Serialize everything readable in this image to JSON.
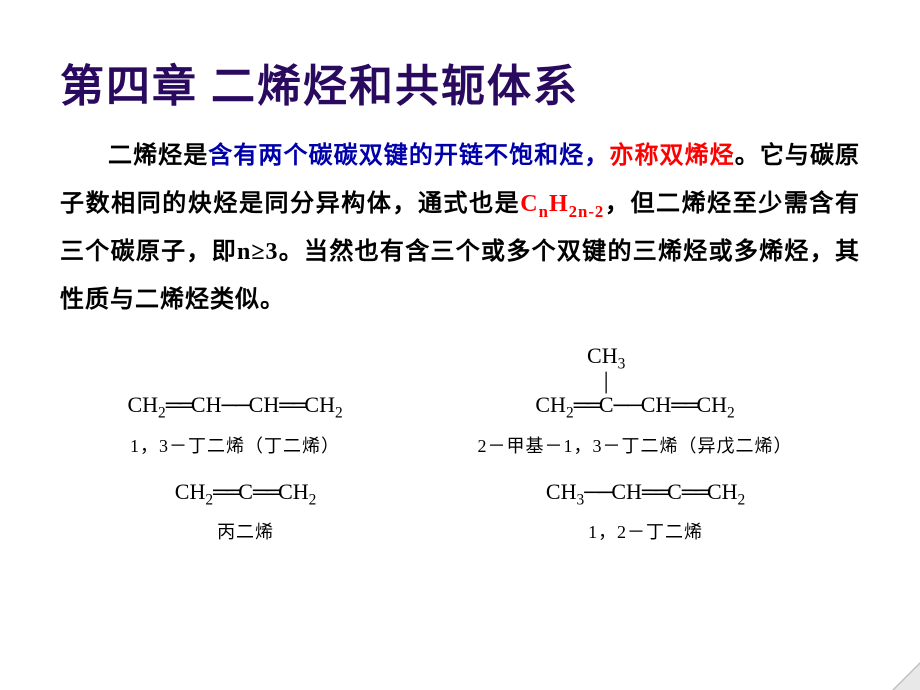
{
  "title": {
    "text": "第四章  二烯烃和共轭体系",
    "color": "#2a0a5e"
  },
  "paragraph": {
    "segments": [
      {
        "text": "二烯烃是",
        "color": "black"
      },
      {
        "text": "含有两个碳碳双键的开链不饱和烃，",
        "color": "blue"
      },
      {
        "text": "亦称双烯烃",
        "color": "red"
      },
      {
        "text": "。它与碳原子数相同的炔烃是同分异构体，通式也是",
        "color": "black"
      },
      {
        "text": "C",
        "color": "red"
      },
      {
        "text": "n",
        "color": "red",
        "sub": true
      },
      {
        "text": "H",
        "color": "red"
      },
      {
        "text": "2n-2",
        "color": "red",
        "sub": true
      },
      {
        "text": "，但二烯烃至少需含有三个碳原子，即n≥3。当然也有含三个或多个双键的三烯烃或多烯烃，其性质与二烯烃类似。",
        "color": "black"
      }
    ]
  },
  "molecules": {
    "row1": [
      {
        "branch": null,
        "formula_parts": [
          {
            "t": "CH",
            "s": ""
          },
          {
            "t": "2",
            "s": "sub"
          },
          {
            "t": "═",
            "s": "bond"
          },
          {
            "t": "CH",
            "s": ""
          },
          {
            "t": "—",
            "s": "sbond"
          },
          {
            "t": "CH",
            "s": ""
          },
          {
            "t": "═",
            "s": "bond"
          },
          {
            "t": "CH",
            "s": ""
          },
          {
            "t": "2",
            "s": "sub"
          }
        ],
        "label": "1，3－丁二烯（丁二烯）"
      },
      {
        "branch": {
          "text": "CH₃",
          "on_index": 4
        },
        "formula_parts": [
          {
            "t": "CH",
            "s": ""
          },
          {
            "t": "2",
            "s": "sub"
          },
          {
            "t": "═",
            "s": "bond"
          },
          {
            "t": "C",
            "s": "",
            "branch": true
          },
          {
            "t": "—",
            "s": "sbond"
          },
          {
            "t": "CH",
            "s": ""
          },
          {
            "t": "═",
            "s": "bond"
          },
          {
            "t": "CH",
            "s": ""
          },
          {
            "t": "2",
            "s": "sub"
          }
        ],
        "label": "2－甲基－1，3－丁二烯（异戊二烯）"
      }
    ],
    "row2": [
      {
        "branch": null,
        "formula_parts": [
          {
            "t": "CH",
            "s": ""
          },
          {
            "t": "2",
            "s": "sub"
          },
          {
            "t": "═",
            "s": "bond"
          },
          {
            "t": "C",
            "s": ""
          },
          {
            "t": "═",
            "s": "bond"
          },
          {
            "t": "CH",
            "s": ""
          },
          {
            "t": "2",
            "s": "sub"
          }
        ],
        "label": "丙二烯"
      },
      {
        "branch": null,
        "formula_parts": [
          {
            "t": "CH",
            "s": ""
          },
          {
            "t": "3",
            "s": "sub"
          },
          {
            "t": "—",
            "s": "sbond"
          },
          {
            "t": "CH",
            "s": ""
          },
          {
            "t": "═",
            "s": "bond"
          },
          {
            "t": "C",
            "s": ""
          },
          {
            "t": "═",
            "s": "bond"
          },
          {
            "t": "CH",
            "s": ""
          },
          {
            "t": "2",
            "s": "sub"
          }
        ],
        "label": "1，2－丁二烯"
      }
    ]
  },
  "styles": {
    "title_color": "#2a0a5e",
    "red": "#ff0000",
    "blue": "#0000aa",
    "black": "#000000",
    "body_fontsize": 24,
    "title_fontsize": 44,
    "formula_fontsize": 22,
    "label_fontsize": 18,
    "background": "#ffffff"
  }
}
